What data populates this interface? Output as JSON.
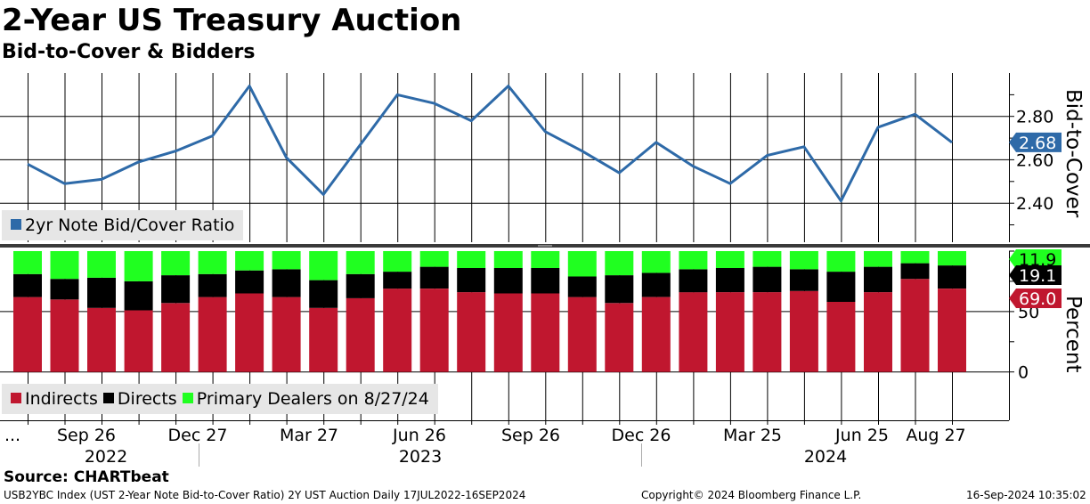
{
  "header": {
    "title": "2-Year US Treasury Auction",
    "subtitle": "Bid-to-Cover & Bidders"
  },
  "source_text": "Source: CHARTbeat",
  "footer": {
    "left": "USB2YBC Index (UST 2-Year Note Bid-to-Cover Ratio) 2Y UST Auction  Daily 17JUL2022-16SEP2024",
    "middle": "Copyright© 2024 Bloomberg Finance L.P.",
    "right": "16-Sep-2024 10:35:02"
  },
  "legend_top": {
    "label": "2yr Note Bid/Cover Ratio",
    "color": "#2e6aa8"
  },
  "legend_bottom": [
    {
      "label": "Indirects",
      "color": "#c0172f"
    },
    {
      "label": "Directs",
      "color": "#000000"
    },
    {
      "label": "Primary Dealers on 8/27/24",
      "color": "#20ff20"
    }
  ],
  "x_axis": {
    "month_labels": [
      "...",
      "Sep 26",
      "Dec 27",
      "Mar 27",
      "Jun 26",
      "Sep 26",
      "Dec 26",
      "Mar 25",
      "Jun 25",
      "Aug 27"
    ],
    "year_labels": [
      "2022",
      "2023",
      "2024"
    ]
  },
  "chart_data": [
    {
      "type": "line",
      "ylabel": "Bid-to-Cover",
      "ylim": [
        2.22,
        3.0
      ],
      "yticks": [
        "2.40",
        "2.60",
        "2.80"
      ],
      "series": [
        {
          "name": "2yr Note Bid/Cover Ratio",
          "color": "#2e6aa8",
          "values": [
            2.58,
            2.49,
            2.51,
            2.59,
            2.64,
            2.71,
            2.94,
            2.61,
            2.44,
            2.67,
            2.9,
            2.86,
            2.78,
            2.94,
            2.73,
            2.64,
            2.54,
            2.68,
            2.57,
            2.49,
            2.62,
            2.66,
            2.41,
            2.75,
            2.81,
            2.68
          ]
        }
      ],
      "last_value_label": "2.68",
      "grid": true
    },
    {
      "type": "bar",
      "stacked": true,
      "ylabel": "Percent",
      "ylim": [
        -40,
        100
      ],
      "yticks": [
        "0",
        "50"
      ],
      "series": [
        {
          "name": "Indirects",
          "color": "#c0172f",
          "values": [
            62,
            60,
            53,
            51,
            57,
            62,
            65,
            62,
            53,
            61,
            69,
            69,
            66,
            65,
            65,
            62,
            57,
            62,
            66,
            66,
            66,
            67,
            58,
            66,
            77,
            69
          ]
        },
        {
          "name": "Directs",
          "color": "#000000",
          "values": [
            19,
            17,
            25,
            24,
            23,
            19,
            19,
            23,
            23,
            20,
            14,
            18,
            20,
            21,
            21,
            17,
            23,
            20,
            19,
            20,
            21,
            18,
            25,
            21,
            13,
            19.1
          ]
        },
        {
          "name": "Primary Dealers on 8/27/24",
          "color": "#20ff20",
          "values": [
            19,
            23,
            22,
            25,
            20,
            19,
            16,
            15,
            24,
            19,
            17,
            13,
            14,
            14,
            14,
            21,
            20,
            18,
            15,
            14,
            13,
            15,
            17,
            13,
            10,
            11.9
          ]
        }
      ],
      "last_value_labels": [
        "11.9",
        "19.1",
        "69.0"
      ],
      "grid": true
    }
  ]
}
